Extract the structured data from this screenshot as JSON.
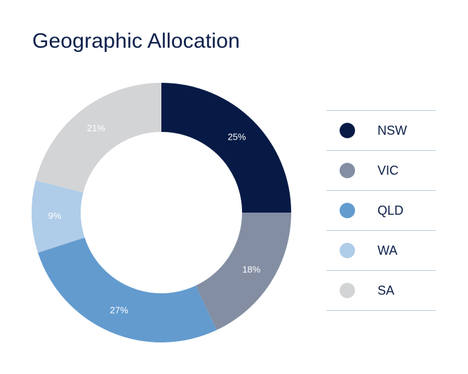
{
  "chart_data": {
    "type": "pie",
    "title": "Geographic Allocation",
    "donut": true,
    "unit": "%",
    "categories": [
      "NSW",
      "VIC",
      "QLD",
      "WA",
      "SA"
    ],
    "values": [
      25,
      18,
      27,
      9,
      21
    ],
    "labels": [
      "25%",
      "18%",
      "27%",
      "9%",
      "21%"
    ],
    "colors": [
      "#061a45",
      "#838ea3",
      "#639bcf",
      "#afcce8",
      "#d3d4d6"
    ],
    "label_colors": [
      "#ffffff",
      "#ffffff",
      "#ffffff",
      "#ffffff",
      "#ffffff"
    ],
    "legend_position": "right"
  }
}
